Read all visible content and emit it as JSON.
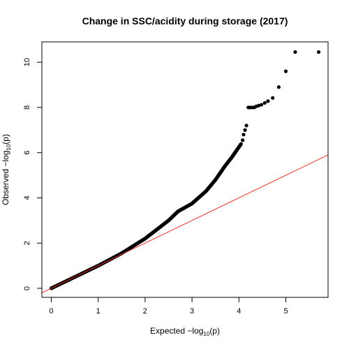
{
  "chart_data": {
    "type": "scatter",
    "title": "Change in SSC/acidity during storage (2017)",
    "xlabel": {
      "prefix": "Expected  −log",
      "sub": "10",
      "suffix": "(p)"
    },
    "ylabel": {
      "prefix": "Observed  −log",
      "sub": "10",
      "suffix": "(p)"
    },
    "xlim": [
      -0.2,
      5.9
    ],
    "ylim": [
      -0.4,
      10.9
    ],
    "x_ticks": [
      0,
      1,
      2,
      3,
      4,
      5
    ],
    "y_ticks": [
      0,
      2,
      4,
      6,
      8,
      10
    ],
    "grid": false,
    "point_color": "#000000",
    "reference_line": {
      "slope": 1,
      "intercept": 0,
      "color": "#e8312d"
    },
    "curve_segments": [
      {
        "x": [
          0.0,
          1.0,
          1.5,
          2.0,
          2.5,
          2.7,
          3.0,
          3.3,
          3.5,
          3.7,
          3.85,
          3.95,
          4.05
        ],
        "y": [
          0.0,
          1.0,
          1.55,
          2.2,
          3.0,
          3.4,
          3.75,
          4.3,
          4.8,
          5.4,
          5.8,
          6.1,
          6.4
        ]
      }
    ],
    "points": [
      {
        "x": 4.08,
        "y": 6.55
      },
      {
        "x": 4.1,
        "y": 6.8
      },
      {
        "x": 4.13,
        "y": 7.0
      },
      {
        "x": 4.16,
        "y": 7.2
      },
      {
        "x": 4.2,
        "y": 8.0
      },
      {
        "x": 4.23,
        "y": 8.0
      },
      {
        "x": 4.26,
        "y": 8.0
      },
      {
        "x": 4.3,
        "y": 8.0
      },
      {
        "x": 4.33,
        "y": 8.0
      },
      {
        "x": 4.37,
        "y": 8.05
      },
      {
        "x": 4.42,
        "y": 8.08
      },
      {
        "x": 4.48,
        "y": 8.12
      },
      {
        "x": 4.55,
        "y": 8.2
      },
      {
        "x": 4.62,
        "y": 8.28
      },
      {
        "x": 4.72,
        "y": 8.42
      },
      {
        "x": 4.85,
        "y": 8.9
      },
      {
        "x": 5.0,
        "y": 9.6
      },
      {
        "x": 5.2,
        "y": 10.45
      },
      {
        "x": 5.7,
        "y": 10.45
      }
    ]
  }
}
